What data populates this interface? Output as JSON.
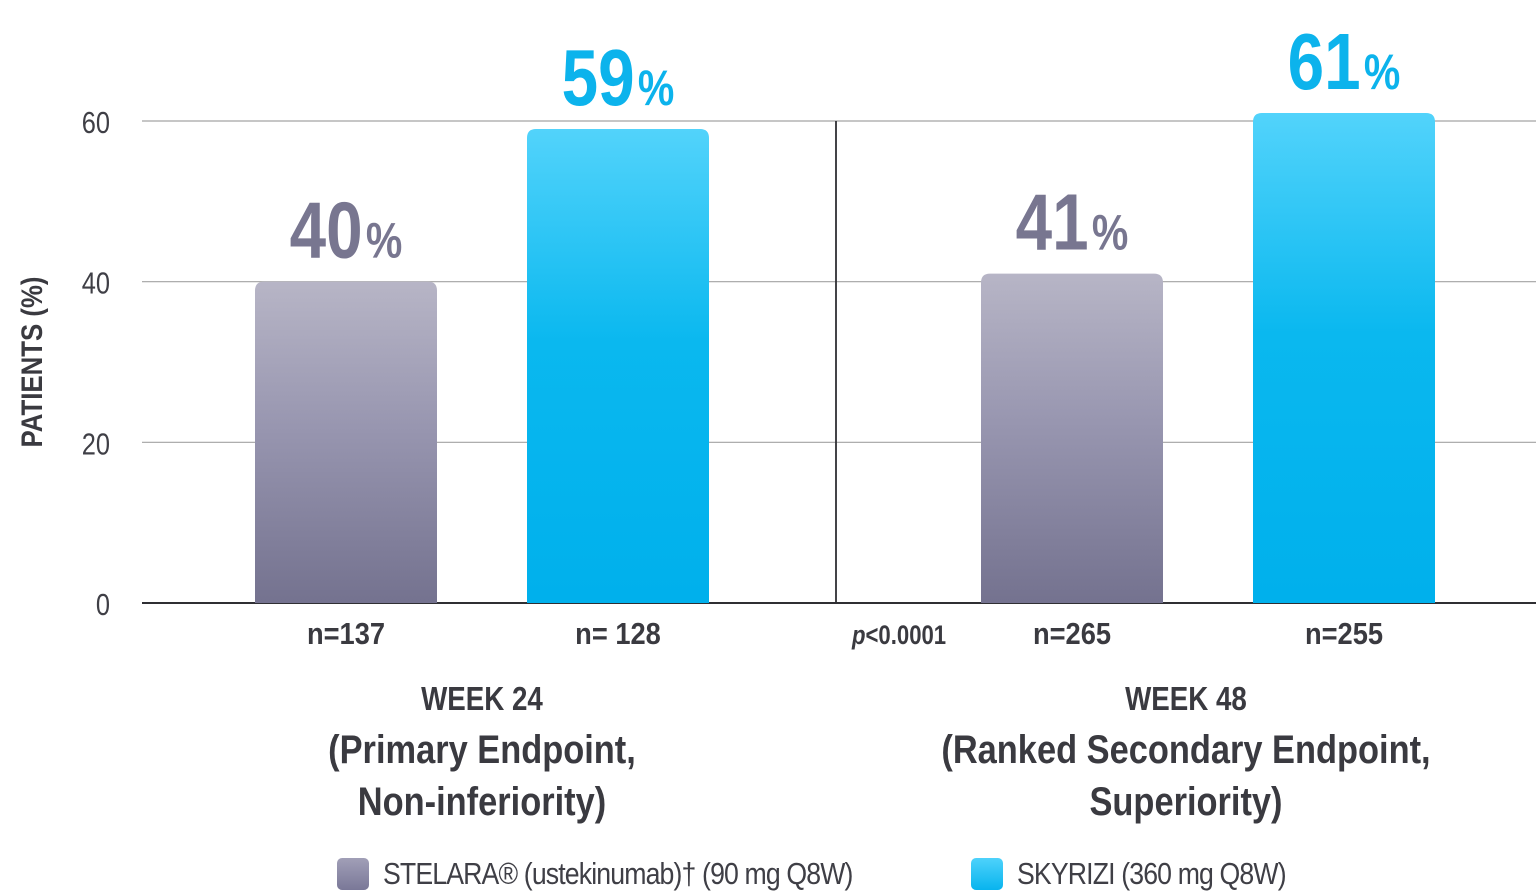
{
  "chart_data": {
    "type": "bar",
    "ylabel": "PATIENTS (%)",
    "ylim": [
      0,
      60
    ],
    "yticks": [
      0,
      20,
      40,
      60
    ],
    "grid": true,
    "series": [
      {
        "name": "STELARA® (ustekinumab)† (90 mg Q8W)",
        "color": "#7a7898"
      },
      {
        "name": "SKYRIZI (360 mg Q8W)",
        "color": "#08b4ee"
      }
    ],
    "groups": [
      {
        "title_line1": "WEEK 24",
        "title_line2": "(Primary Endpoint,",
        "title_line3": "Non-inferiority)",
        "annotation": "",
        "bars": [
          {
            "series": "STELARA",
            "value": 40,
            "label_num": "40",
            "label_pct": "%",
            "n_label": "n=137"
          },
          {
            "series": "SKYRIZI",
            "value": 59,
            "label_num": "59",
            "label_pct": "%",
            "n_label": "n= 128"
          }
        ]
      },
      {
        "title_line1": "WEEK 48",
        "title_line2": "(Ranked Secondary Endpoint,",
        "title_line3": "Superiority)",
        "annotation": "p<0.0001",
        "bars": [
          {
            "series": "STELARA",
            "value": 41,
            "label_num": "41",
            "label_pct": "%",
            "n_label": "n=265"
          },
          {
            "series": "SKYRIZI",
            "value": 61,
            "label_num": "61",
            "label_pct": "%",
            "n_label": "n=255"
          }
        ]
      }
    ]
  },
  "legend": [
    {
      "label": "STELARA® (ustekinumab)† (90 mg Q8W)",
      "color": "#7a7898"
    },
    {
      "label": "SKYRIZI (360 mg Q8W)",
      "color": "#08b4ee"
    }
  ]
}
